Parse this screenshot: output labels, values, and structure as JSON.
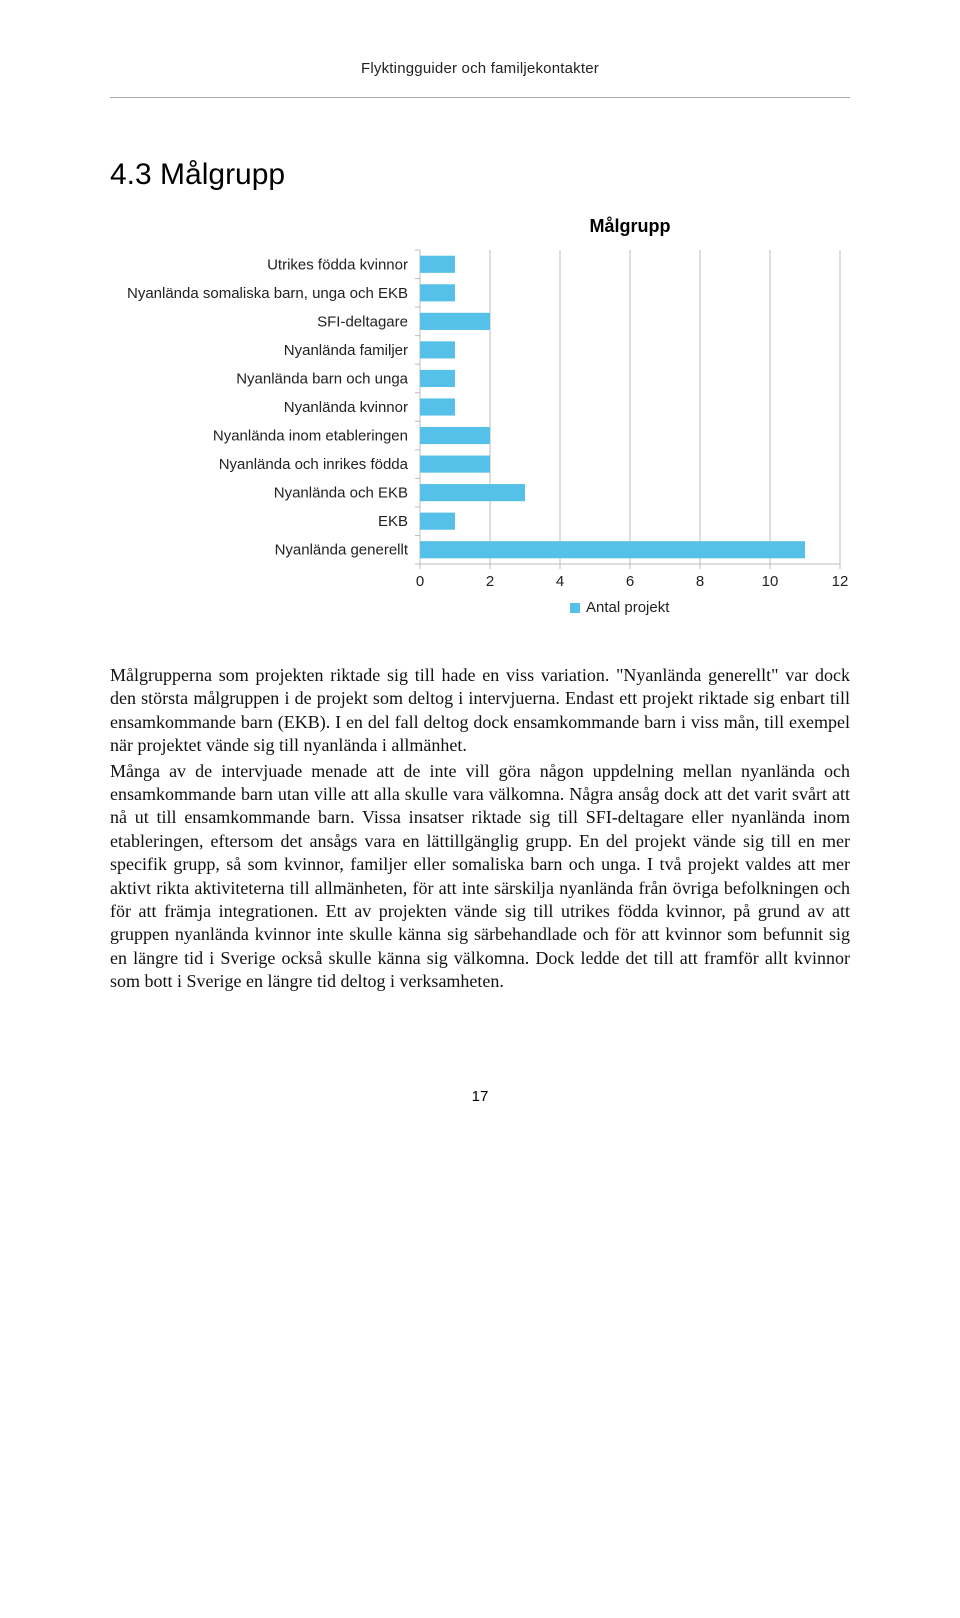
{
  "running_head": "Flyktingguider och familjekontakter",
  "section_heading": "4.3 Målgrupp",
  "chart": {
    "type": "bar",
    "title": "Målgrupp",
    "x_axis_label": "Antal projekt",
    "xlim": [
      0,
      12
    ],
    "xticks": [
      0,
      2,
      4,
      6,
      8,
      10,
      12
    ],
    "categories": [
      "Utrikes födda kvinnor",
      "Nyanlända somaliska barn, unga och EKB",
      "SFI-deltagare",
      "Nyanlända familjer",
      "Nyanlända barn och unga",
      "Nyanlända kvinnor",
      "Nyanlända inom etableringen",
      "Nyanlända och inrikes födda",
      "Nyanlända och EKB",
      "EKB",
      "Nyanlända generellt"
    ],
    "values": [
      1,
      1,
      2,
      1,
      1,
      1,
      2,
      2,
      3,
      1,
      11
    ],
    "bar_color": "#55c1e8",
    "grid_color": "#bcbcbc",
    "axis_color": "#bcbcbc",
    "background_color": "#ffffff",
    "label_fontsize": 15,
    "title_fontsize": 18,
    "bar_height_ratio": 0.6,
    "legend_marker_color": "#55c1e8"
  },
  "paragraphs": [
    "Målgrupperna som projekten riktade sig till hade en viss variation. \"Nyanlända generellt\" var dock den största målgruppen i de projekt som deltog i intervjuerna. Endast ett projekt riktade sig enbart till ensamkommande barn (EKB). I en del fall deltog dock ensamkommande barn i viss mån, till exempel när projektet vände sig till nyanlända i allmänhet.",
    "Många av de intervjuade menade att de inte vill göra någon uppdelning mellan nyanlända och ensamkommande barn utan ville att alla skulle vara välkomna. Några ansåg dock att det varit svårt att nå ut till ensamkommande barn. Vissa insatser riktade sig till SFI-deltagare eller nyanlända inom etableringen, eftersom det ansågs vara en lättillgänglig grupp. En del projekt vände sig till en mer specifik grupp, så som kvinnor, familjer eller somaliska barn och unga. I två projekt valdes att mer aktivt rikta aktiviteterna till allmänheten, för att inte särskilja nyanlända från övriga befolkningen och för att främja integrationen. Ett av projekten vände sig till utrikes födda kvinnor, på grund av att gruppen nyanlända kvinnor inte skulle känna sig särbehandlade och för att kvinnor som befunnit sig en längre tid i Sverige också skulle känna sig välkomna. Dock ledde det till att framför allt kvinnor som bott i Sverige en längre tid deltog i verksamheten."
  ],
  "page_number": "17"
}
